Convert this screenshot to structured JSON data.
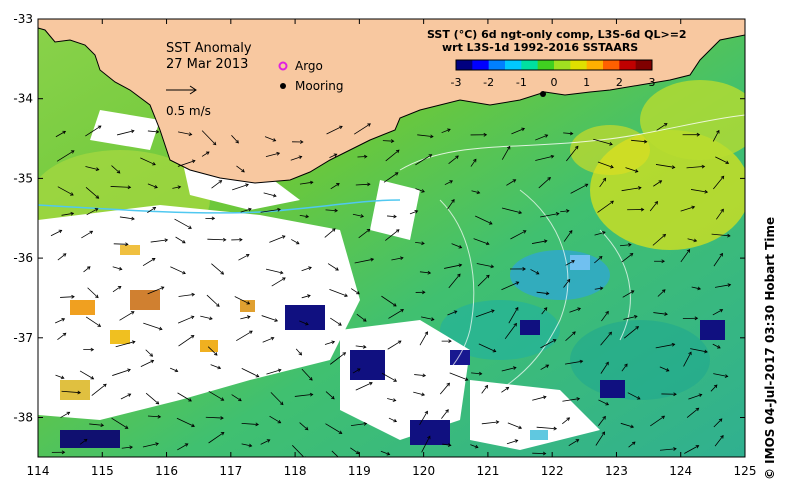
{
  "map": {
    "title": "SST Anomaly",
    "date": "27 Mar 2013",
    "scale_label": "0.5 m/s",
    "legend": {
      "argo": "Argo",
      "mooring": "Mooring"
    },
    "colorbar": {
      "title_line1": "SST (°C) 6d ngt-only comp, L3S-6d QL>=2",
      "title_line2": "wrt L3S-1d 1992-2016 SSTAARS",
      "ticks": [
        "-3",
        "-2",
        "-1",
        "0",
        "1",
        "2",
        "3"
      ],
      "colors": [
        "#000080",
        "#0000ff",
        "#0080ff",
        "#00c8ff",
        "#00e0a0",
        "#40d020",
        "#a0e020",
        "#e0e000",
        "#ffb000",
        "#ff6000",
        "#c00000",
        "#800000"
      ]
    },
    "x_ticks": [
      "114",
      "115",
      "116",
      "117",
      "118",
      "119",
      "120",
      "121",
      "122",
      "123",
      "124",
      "125"
    ],
    "y_ticks": [
      "-33",
      "-34",
      "-35",
      "-36",
      "-37",
      "-38"
    ],
    "credit": "©  IMOS 04-Jul-2017 03:30 Hobart Time",
    "land_color": "#f8c8a0"
  }
}
